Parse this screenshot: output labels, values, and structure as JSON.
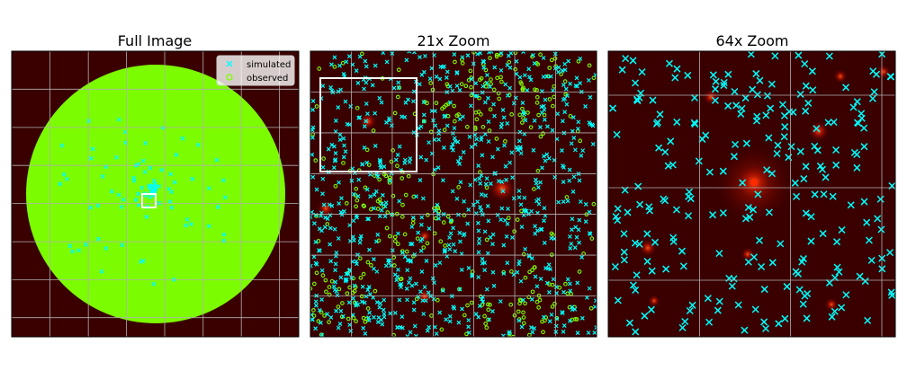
{
  "colors": {
    "background": "#3a0000",
    "grid": "#b0b0b0",
    "simulated": "#00ffff",
    "observed": "#7cfc00",
    "zoom_box": "#ffffff",
    "star_core": "#ff2a00"
  },
  "chart_data": [
    {
      "type": "scatter",
      "title": "Full Image",
      "grid": true,
      "legend_position": "top-right",
      "series": [
        {
          "name": "simulated",
          "marker": "x",
          "color": "#00ffff"
        },
        {
          "name": "observed",
          "marker": "o",
          "color": "#7cfc00"
        }
      ],
      "content": "disc of dense observed markers with sparse simulated markers toward the center",
      "zoom_box": "central square marking the 21x Zoom region"
    },
    {
      "type": "scatter",
      "title": "21x Zoom",
      "grid": true,
      "series": [
        {
          "name": "simulated",
          "marker": "x",
          "color": "#00ffff"
        },
        {
          "name": "observed",
          "marker": "o",
          "color": "#7cfc00"
        }
      ],
      "zoom_box": "upper-left rectangle marking the 64x Zoom region"
    },
    {
      "type": "scatter",
      "title": "64x Zoom",
      "grid": true,
      "series": [
        {
          "name": "simulated",
          "marker": "x",
          "color": "#00ffff"
        }
      ],
      "content": "sparse simulated markers over glowing red star sources"
    }
  ],
  "legend": {
    "simulated": "simulated",
    "observed": "observed"
  }
}
